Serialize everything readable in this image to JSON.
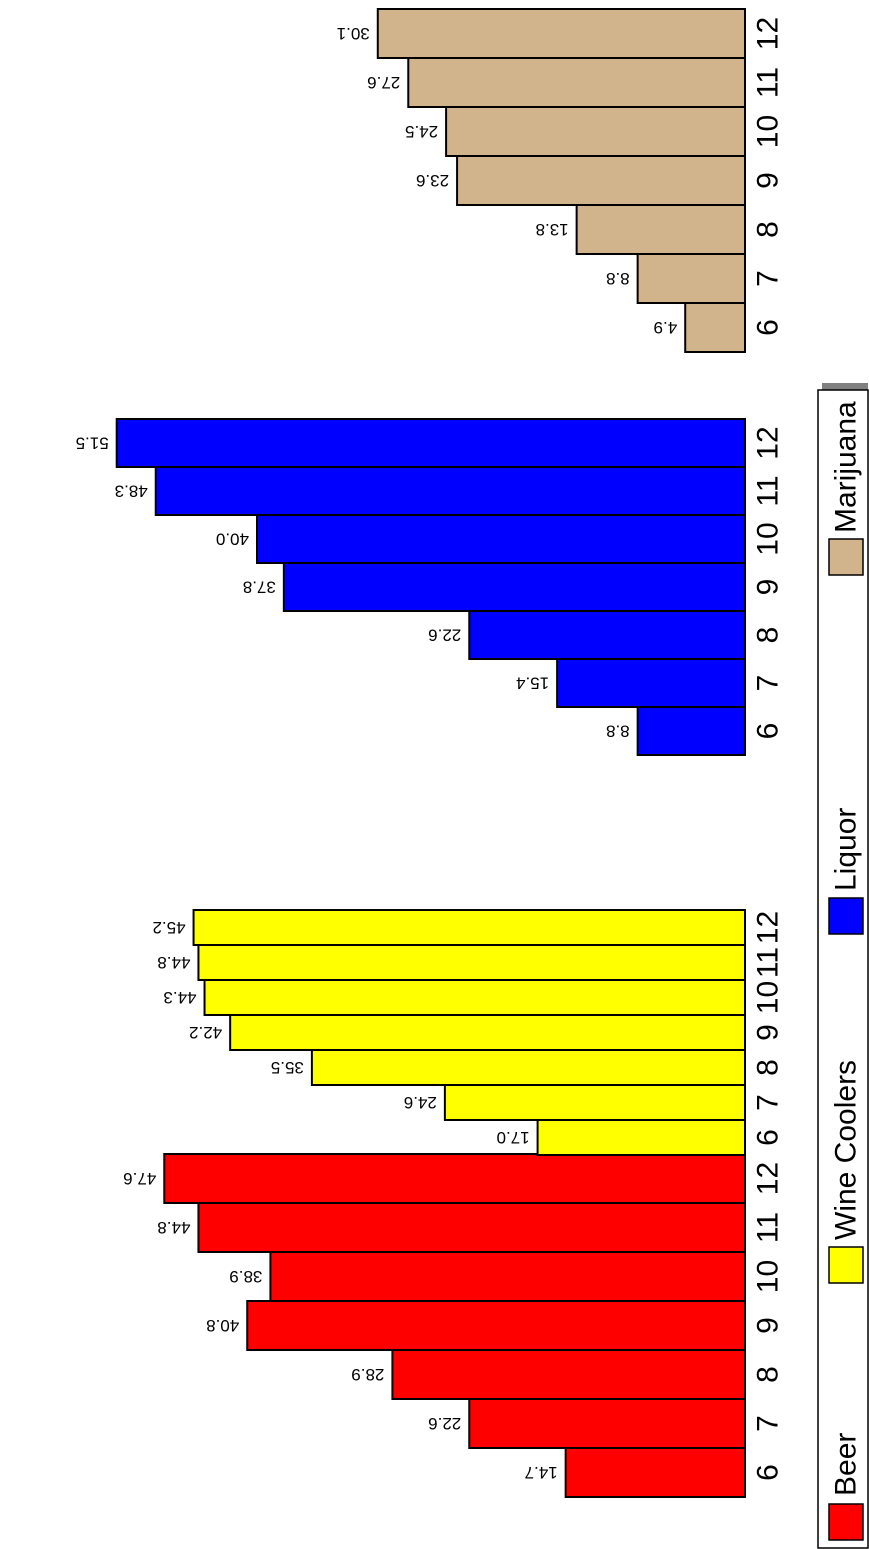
{
  "chart_data": {
    "type": "bar",
    "orientation": "horizontal, rotated 90 degrees",
    "title": "",
    "xlabel": "",
    "ylabel": "",
    "categories": [
      "6",
      "7",
      "8",
      "9",
      "10",
      "11",
      "12"
    ],
    "xlim": [
      0,
      55
    ],
    "grid": false,
    "legend_position": "right, vertical",
    "series": [
      {
        "name": "Beer",
        "color": "#ff0000",
        "values": [
          14.7,
          22.6,
          28.9,
          40.8,
          38.9,
          44.8,
          47.6
        ],
        "labels": [
          "14.7",
          "22.6",
          "28.9",
          "40.8",
          "38.9",
          "44.8",
          "47.6"
        ]
      },
      {
        "name": "Wine Coolers",
        "color": "#ffff00",
        "values": [
          17.0,
          24.6,
          35.5,
          42.2,
          44.3,
          44.8,
          45.2
        ],
        "labels": [
          "17.0",
          "24.6",
          "35.5",
          "42.2",
          "44.3",
          "44.8",
          "45.2"
        ]
      },
      {
        "name": "Liquor",
        "color": "#0000ff",
        "values": [
          8.8,
          15.4,
          22.6,
          37.8,
          40.0,
          48.3,
          51.5
        ],
        "labels": [
          "8.8",
          "15.4",
          "22.6",
          "37.8",
          "40.0",
          "48.3",
          "51.5"
        ]
      },
      {
        "name": "Marijuana",
        "color": "#d2b48c",
        "values": [
          4.9,
          8.8,
          13.8,
          23.6,
          24.5,
          27.6,
          30.1
        ],
        "labels": [
          "4.9",
          "8.8",
          "13.8",
          "23.6",
          "24.5",
          "27.6",
          "30.1"
        ]
      }
    ]
  }
}
